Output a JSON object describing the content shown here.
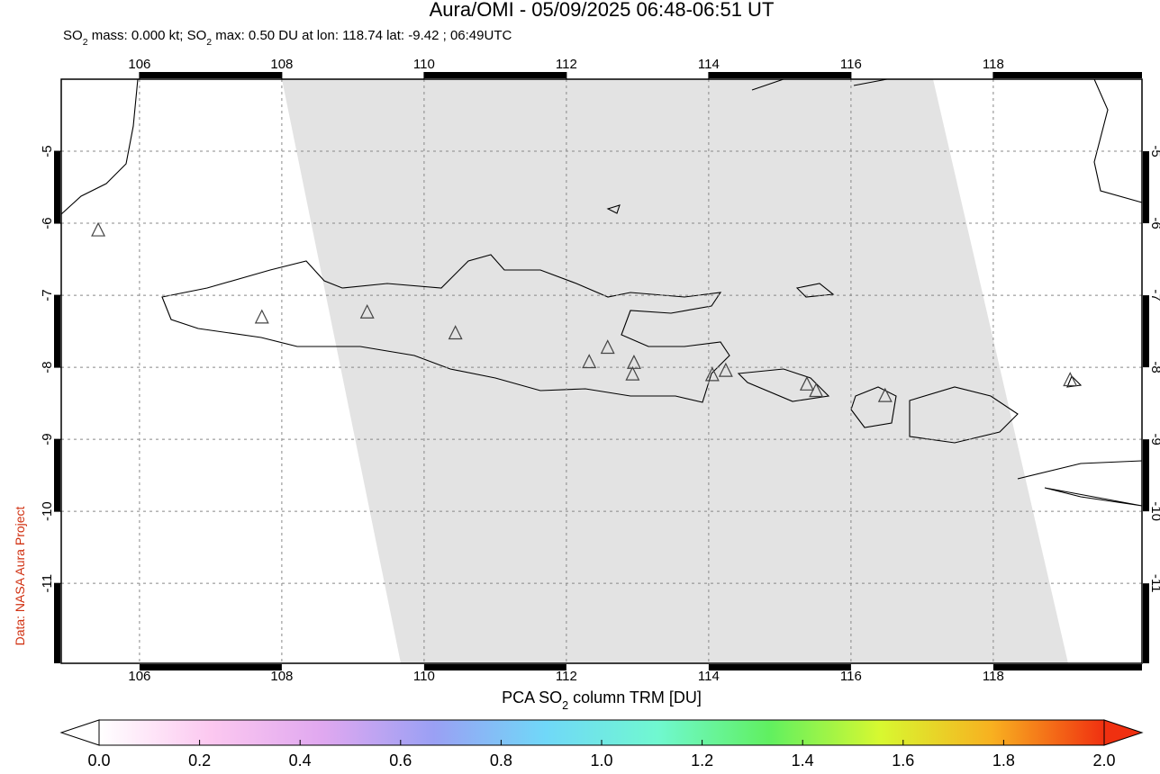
{
  "map": {
    "title": "Aura/OMI - 05/09/2025 06:48-06:51 UT",
    "subtitle": [
      {
        "text": "SO"
      },
      {
        "text": "2",
        "sub": true
      },
      {
        "text": " mass: 0.000 kt; SO"
      },
      {
        "text": "2",
        "sub": true
      },
      {
        "text": " max: 0.50 DU at lon: 118.74 lat: -9.42 ; 06:49UTC"
      }
    ],
    "credit": "Data: NASA Aura Project",
    "xlim": [
      104.9,
      120.09
    ],
    "ylim": [
      -12.11,
      -4
    ],
    "xticks": [
      106,
      108,
      110,
      112,
      114,
      116,
      118
    ],
    "yticks": [
      -5,
      -6,
      -7,
      -8,
      -9,
      -10,
      -11
    ],
    "grid": true,
    "volcano_color": "#444444",
    "volcanoes": [
      {
        "lon": 107.72,
        "lat": -7.31
      },
      {
        "lon": 109.2,
        "lat": -7.24
      },
      {
        "lon": 110.44,
        "lat": -7.53
      },
      {
        "lon": 112.32,
        "lat": -7.93
      },
      {
        "lon": 112.58,
        "lat": -7.73
      },
      {
        "lon": 112.95,
        "lat": -7.94
      },
      {
        "lon": 112.93,
        "lat": -8.1
      },
      {
        "lon": 114.05,
        "lat": -8.11
      },
      {
        "lon": 114.24,
        "lat": -8.05
      },
      {
        "lon": 115.38,
        "lat": -8.24
      },
      {
        "lon": 115.51,
        "lat": -8.33
      },
      {
        "lon": 116.48,
        "lat": -8.4
      },
      {
        "lon": 119.08,
        "lat": -8.18
      },
      {
        "lon": 105.42,
        "lat": -6.1
      }
    ],
    "colorbar": {
      "label": [
        {
          "text": "PCA SO"
        },
        {
          "text": "2",
          "sub": true
        },
        {
          "text": " column TRM [DU]"
        }
      ],
      "lim": [
        0,
        2
      ],
      "ticks": [
        {
          "value": 0,
          "label": "0.0"
        },
        {
          "value": 0.2,
          "label": "0.2"
        },
        {
          "value": 0.4,
          "label": "0.4"
        },
        {
          "value": 0.6,
          "label": "0.6"
        },
        {
          "value": 0.8,
          "label": "0.8"
        },
        {
          "value": 1,
          "label": "1.0"
        },
        {
          "value": 1.2,
          "label": "1.2"
        },
        {
          "value": 1.4,
          "label": "1.4"
        },
        {
          "value": 1.6,
          "label": "1.6"
        },
        {
          "value": 1.8,
          "label": "1.8"
        },
        {
          "value": 2,
          "label": "2.0"
        }
      ],
      "colors": [
        "#ffffff",
        "#fcc8f0",
        "#e0a8f0",
        "#9aa0f4",
        "#70d8f8",
        "#70f8d0",
        "#60f060",
        "#d8f830",
        "#f8b020",
        "#f03010"
      ]
    }
  }
}
